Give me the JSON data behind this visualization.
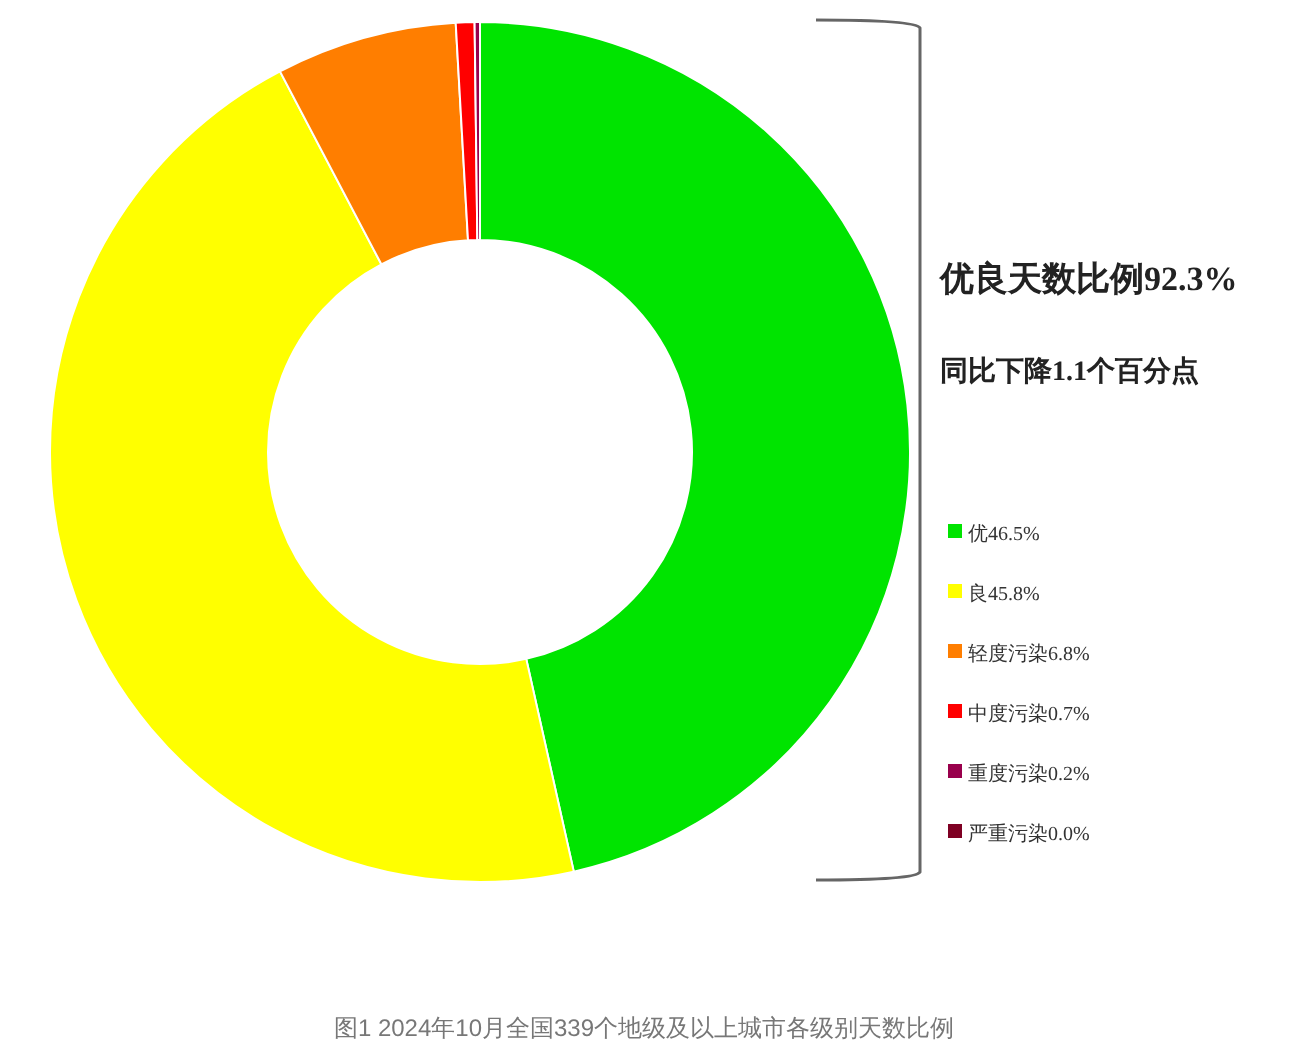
{
  "chart_data": {
    "type": "donut",
    "categories": [
      "优",
      "良",
      "轻度污染",
      "中度污染",
      "重度污染",
      "严重污染"
    ],
    "values": [
      46.5,
      45.8,
      6.8,
      0.7,
      0.2,
      0.0
    ],
    "colors": [
      "#00e400",
      "#ffff00",
      "#ff7e00",
      "#ff0000",
      "#99004c",
      "#7e0023"
    ],
    "value_labels": [
      "46.5%",
      "45.8%",
      "6.8%",
      "0.7%",
      "0.2%",
      "0.0%"
    ],
    "legend": "right",
    "annotations": [
      "优良天数比例92.3%",
      "同比下降1.1个百分点",
      "图1  2024年10月全国339个地级及以上城市各级别天数比例"
    ]
  }
}
